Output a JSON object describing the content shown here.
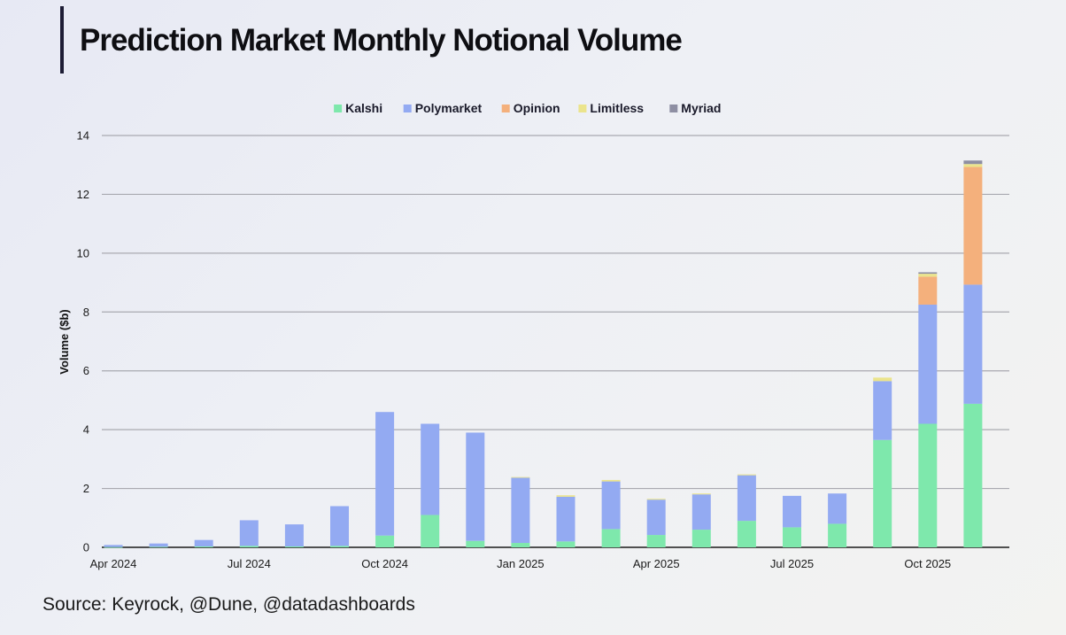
{
  "title": "Prediction Market Monthly Notional Volume",
  "source": "Source: Keyrock, @Dune, @datadashboards",
  "chart_data": {
    "type": "bar",
    "stacked": true,
    "title": "Prediction Market Monthly Notional Volume",
    "xlabel": "",
    "ylabel": "Volume ($b)",
    "ylim": [
      0,
      14
    ],
    "yticks": [
      0,
      2,
      4,
      6,
      8,
      10,
      12,
      14
    ],
    "grid": true,
    "legend_position": "top-center",
    "categories": [
      "Apr 2024",
      "May 2024",
      "Jun 2024",
      "Jul 2024",
      "Aug 2024",
      "Sep 2024",
      "Oct 2024",
      "Nov 2024",
      "Dec 2024",
      "Jan 2025",
      "Feb 2025",
      "Mar 2025",
      "Apr 2025",
      "May 2025",
      "Jun 2025",
      "Jul 2025",
      "Aug 2025",
      "Sep 2025",
      "Oct 2025",
      "Nov 2025"
    ],
    "xtick_labels": [
      {
        "index": 0,
        "label": "Apr 2024"
      },
      {
        "index": 3,
        "label": "Jul 2024"
      },
      {
        "index": 6,
        "label": "Oct 2024"
      },
      {
        "index": 9,
        "label": "Jan 2025"
      },
      {
        "index": 12,
        "label": "Apr 2025"
      },
      {
        "index": 15,
        "label": "Jul 2025"
      },
      {
        "index": 18,
        "label": "Oct 2025"
      }
    ],
    "series": [
      {
        "name": "Kalshi",
        "color": "#7ee8ac",
        "values": [
          0.01,
          0.02,
          0.03,
          0.05,
          0.03,
          0.05,
          0.4,
          1.1,
          0.22,
          0.15,
          0.2,
          0.62,
          0.42,
          0.6,
          0.9,
          0.68,
          0.8,
          3.65,
          4.2,
          4.88
        ]
      },
      {
        "name": "Polymarket",
        "color": "#93aaf2",
        "values": [
          0.07,
          0.11,
          0.22,
          0.87,
          0.75,
          1.35,
          4.2,
          3.1,
          3.68,
          2.22,
          1.52,
          1.62,
          1.2,
          1.2,
          1.55,
          1.07,
          1.03,
          2.0,
          4.05,
          4.05
        ]
      },
      {
        "name": "Opinion",
        "color": "#f4b07c",
        "values": [
          0,
          0,
          0,
          0,
          0,
          0,
          0,
          0,
          0,
          0,
          0,
          0,
          0,
          0,
          0,
          0,
          0,
          0,
          0.95,
          4.0
        ]
      },
      {
        "name": "Limitless",
        "color": "#ebe48c",
        "values": [
          0,
          0,
          0,
          0,
          0,
          0,
          0,
          0,
          0,
          0.02,
          0.05,
          0.05,
          0.03,
          0.03,
          0.03,
          0,
          0,
          0.12,
          0.1,
          0.1
        ]
      },
      {
        "name": "Myriad",
        "color": "#8e8fa3",
        "values": [
          0,
          0,
          0,
          0,
          0,
          0,
          0,
          0,
          0,
          0,
          0,
          0,
          0,
          0,
          0,
          0,
          0,
          0,
          0.05,
          0.12
        ]
      }
    ]
  }
}
